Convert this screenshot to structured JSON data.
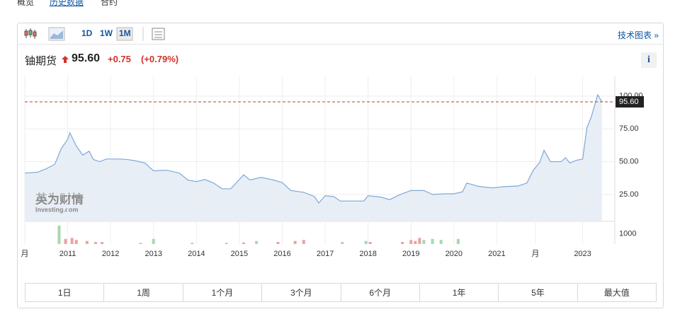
{
  "tabs": [
    "概览",
    "历史数据",
    "合约"
  ],
  "toolbar": {
    "intervals": [
      "1D",
      "1W",
      "1M"
    ],
    "tech_link": "技术图表 »"
  },
  "header": {
    "name": "铀期货",
    "price": "95.60",
    "change": "+0.75",
    "change_pct": "(+0.79%)",
    "info": "i"
  },
  "watermark": {
    "brand": "英为财情",
    "site": "Investing.com"
  },
  "ranges": [
    "1日",
    "1周",
    "1个月",
    "3个月",
    "6个月",
    "1年",
    "5年",
    "最大值"
  ],
  "chart_data": {
    "type": "area",
    "color": "#7fa8d8",
    "fill": "#e8eef6",
    "grid": true,
    "x": [
      2010.0,
      2010.3,
      2010.5,
      2010.7,
      2010.85,
      2011.0,
      2011.05,
      2011.2,
      2011.35,
      2011.5,
      2011.6,
      2011.75,
      2011.9,
      2012.2,
      2012.4,
      2012.6,
      2012.8,
      2013.0,
      2013.3,
      2013.6,
      2013.8,
      2014.0,
      2014.2,
      2014.4,
      2014.6,
      2014.8,
      2015.0,
      2015.1,
      2015.25,
      2015.5,
      2015.8,
      2016.0,
      2016.2,
      2016.5,
      2016.75,
      2016.85,
      2017.0,
      2017.2,
      2017.35,
      2017.6,
      2017.9,
      2018.0,
      2018.3,
      2018.5,
      2018.75,
      2019.0,
      2019.3,
      2019.5,
      2019.8,
      2020.0,
      2020.2,
      2020.3,
      2020.6,
      2020.9,
      2021.2,
      2021.5,
      2021.7,
      2021.85,
      2022.0,
      2022.1,
      2022.25,
      2022.5,
      2022.6,
      2022.7,
      2022.85,
      2023.0,
      2023.1,
      2023.2,
      2023.35,
      2023.45
    ],
    "values": [
      41.3,
      42,
      44.6,
      48,
      60,
      67,
      72,
      62,
      55,
      58,
      51.6,
      50,
      52,
      52,
      51.6,
      50.5,
      49,
      43,
      43.5,
      41.3,
      36,
      34.8,
      36.4,
      33.7,
      29.3,
      29.3,
      36.4,
      40,
      36,
      38,
      36,
      34,
      28,
      26.6,
      23.4,
      18.5,
      24,
      23.4,
      20,
      20,
      20,
      24,
      23,
      21,
      25,
      28,
      28,
      25,
      25.5,
      25.5,
      27,
      33.7,
      31,
      30,
      31,
      31.5,
      33.7,
      43.5,
      49.5,
      58.7,
      50,
      50,
      53,
      49,
      51,
      52,
      76,
      84,
      101,
      95.6
    ],
    "xlim": [
      2010,
      2023.75
    ],
    "xticks": [
      {
        "value": 2010,
        "label": "月"
      },
      2011,
      2012,
      2013,
      2014,
      2015,
      2016,
      2017,
      2018,
      2019,
      2020,
      2021,
      {
        "value": 2021.9,
        "label": "月"
      },
      2023
    ],
    "ylim": [
      5,
      115
    ],
    "yticks": [
      {
        "value": 25,
        "label": "25.00"
      },
      {
        "value": 50,
        "label": "50.00"
      },
      {
        "value": 75,
        "label": "75.00"
      },
      {
        "value": 100,
        "label": "100.00"
      }
    ],
    "price_line": {
      "value": 95.6,
      "label": "95.60",
      "color": "#c0392b"
    },
    "y2lim": [
      0,
      2000
    ],
    "y2ticks": [
      1000
    ],
    "volume": {
      "x": [
        2010.8,
        2010.95,
        2011.1,
        2011.2,
        2011.45,
        2011.65,
        2011.8,
        2012.7,
        2013.0,
        2013.9,
        2014.7,
        2015.1,
        2015.4,
        2015.9,
        2016.3,
        2016.5,
        2017.4,
        2017.95,
        2018.05,
        2018.8,
        2019.0,
        2019.1,
        2019.2,
        2019.3,
        2019.5,
        2019.7,
        2020.1
      ],
      "values": [
        1800,
        500,
        600,
        400,
        300,
        200,
        200,
        100,
        500,
        100,
        100,
        150,
        300,
        200,
        300,
        400,
        200,
        300,
        200,
        200,
        400,
        300,
        600,
        400,
        500,
        400,
        500
      ],
      "colors": [
        "#a8d8ae",
        "#e9a3a3",
        "#e9a3a3",
        "#e9a3a3",
        "#e9a3a3",
        "#e9a3a3",
        "#e9a3a3",
        "#e9a3a3",
        "#a8d8ae",
        "#e9a3a3",
        "#e9a3a3",
        "#e9a3a3",
        "#a8d8ae",
        "#e9a3a3",
        "#e9a3a3",
        "#e9a3a3",
        "#a8d8ae",
        "#a8d8ae",
        "#e9a3a3",
        "#e9a3a3",
        "#e9a3a3",
        "#e9a3a3",
        "#e9a3a3",
        "#a8d8ae",
        "#a8d8ae",
        "#a8d8ae",
        "#a8d8ae"
      ]
    }
  }
}
